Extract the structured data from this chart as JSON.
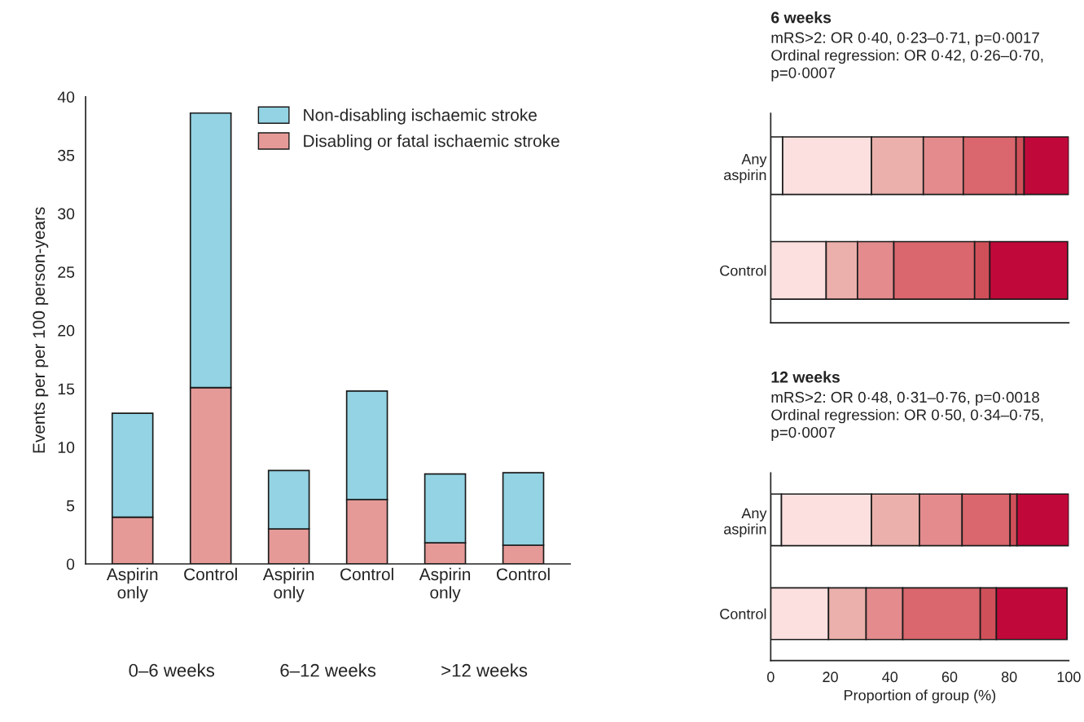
{
  "chart_data": [
    {
      "type": "bar",
      "stacked": true,
      "ylabel": "Events per per 100 person-years",
      "categories": [
        "Aspirin\nonly",
        "Control",
        "Aspirin\nonly",
        "Control",
        "Aspirin\nonly",
        "Control"
      ],
      "annotations": [
        "0–6 weeks",
        "6–12 weeks",
        ">12 weeks"
      ],
      "ylim": [
        0,
        40
      ],
      "yticks": [
        0,
        5,
        10,
        15,
        20,
        25,
        30,
        35,
        40
      ],
      "legend": "top right",
      "grid": false,
      "series": [
        {
          "name": "Disabling or fatal ischaemic stroke",
          "color": "#e59a98",
          "values": [
            4.0,
            15.1,
            3.0,
            5.5,
            1.8,
            1.6
          ]
        },
        {
          "name": "Non-disabling ischaemic stroke",
          "color": "#93d3e3",
          "values": [
            8.9,
            23.5,
            5.0,
            9.3,
            5.9,
            6.2
          ]
        }
      ]
    },
    {
      "type": "bar",
      "orientation": "horizontal",
      "stacked": true,
      "title": "6 weeks",
      "subtitle": "mRS>2: OR 0·40, 0·23–0·71, p=0·0017\nOrdinal regression: OR 0·42, 0·26–0·70,\np=0·0007",
      "categories": [
        "Any\naspirin",
        "Control"
      ],
      "xlim": [
        0,
        100
      ],
      "xticks": [
        0,
        20,
        40,
        60,
        80,
        100
      ],
      "tick_labels": "y",
      "grid": false,
      "series": [
        {
          "color": "#ffffff",
          "values": [
            4.0,
            null
          ]
        },
        {
          "color": "#fbe0df",
          "values": [
            29.8,
            18.6
          ]
        },
        {
          "color": "#ebb0ab",
          "values": [
            17.4,
            10.5
          ]
        },
        {
          "color": "#e38b8d",
          "values": [
            13.4,
            12.2
          ]
        },
        {
          "color": "#d9676d",
          "values": [
            17.7,
            27.1
          ]
        },
        {
          "color": "#d0505a",
          "values": [
            2.7,
            5.1
          ]
        },
        {
          "color": "#c0093a",
          "values": [
            15.0,
            26.1
          ]
        }
      ]
    },
    {
      "type": "bar",
      "orientation": "horizontal",
      "stacked": true,
      "title": "12 weeks",
      "subtitle": "mRS>2: OR 0·48, 0·31–0·76, p=0·0018\nOrdinal regression: OR 0·50, 0·34–0·75,\np=0·0007",
      "categories": [
        "Any\naspirin",
        "Control"
      ],
      "xlabel": "Proportion of group (%)",
      "xlim": [
        0,
        100
      ],
      "xticks": [
        0,
        20,
        40,
        60,
        80,
        100
      ],
      "grid": false,
      "series": [
        {
          "color": "#ffffff",
          "values": [
            3.6,
            null
          ]
        },
        {
          "color": "#fbe0df",
          "values": [
            30.2,
            19.4
          ]
        },
        {
          "color": "#ebb0ab",
          "values": [
            16.1,
            12.6
          ]
        },
        {
          "color": "#e38b8d",
          "values": [
            14.3,
            12.3
          ]
        },
        {
          "color": "#d9676d",
          "values": [
            16.1,
            26.0
          ]
        },
        {
          "color": "#d0505a",
          "values": [
            2.3,
            5.4
          ]
        },
        {
          "color": "#c0093a",
          "values": [
            17.4,
            23.7
          ]
        }
      ]
    }
  ]
}
